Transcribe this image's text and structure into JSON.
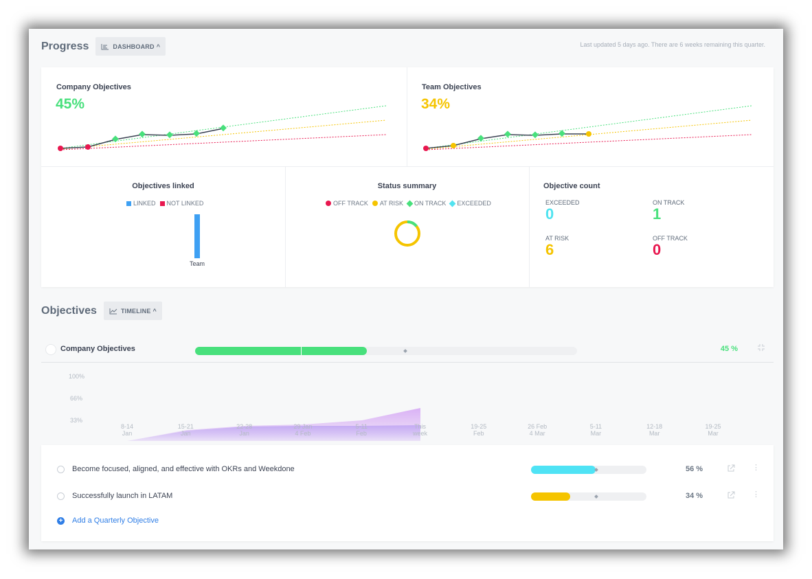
{
  "progress": {
    "title": "Progress",
    "view_button": "DASHBOARD",
    "updated_text": "Last updated 5 days ago. There are 6 weeks remaining this quarter."
  },
  "company_card": {
    "title": "Company Objectives",
    "percent": "45%",
    "percent_color": "#48e07c"
  },
  "team_card": {
    "title": "Team Objectives",
    "percent": "34%",
    "percent_color": "#f5c400"
  },
  "linked_card": {
    "title": "Objectives linked",
    "legend": [
      {
        "label": "LINKED",
        "color": "#3ea0f3"
      },
      {
        "label": "NOT LINKED",
        "color": "#e8174f"
      }
    ],
    "bar_label": "Team",
    "linked_fraction": 1.0
  },
  "status_card": {
    "title": "Status summary",
    "legend": [
      {
        "label": "OFF TRACK",
        "color": "#e8174f",
        "shape": "dot"
      },
      {
        "label": "AT RISK",
        "color": "#f5c400",
        "shape": "dot"
      },
      {
        "label": "ON TRACK",
        "color": "#48e07c",
        "shape": "diamond"
      },
      {
        "label": "EXCEEDED",
        "color": "#52e3f0",
        "shape": "diamond"
      }
    ],
    "donut": {
      "at_risk": 6,
      "on_track": 1,
      "off_track": 0,
      "exceeded": 0
    }
  },
  "count_card": {
    "title": "Objective count",
    "exceeded_label": "EXCEEDED",
    "exceeded_value": "0",
    "exceeded_color": "#4fe3f0",
    "on_track_label": "ON TRACK",
    "on_track_value": "1",
    "on_track_color": "#48e07c",
    "at_risk_label": "AT RISK",
    "at_risk_value": "6",
    "at_risk_color": "#f5c400",
    "off_track_label": "OFF TRACK",
    "off_track_value": "0",
    "off_track_color": "#e8174f"
  },
  "objectives": {
    "title": "Objectives",
    "view_button": "TIMELINE",
    "company": {
      "name": "Company Objectives",
      "percent": "45 %",
      "progress": 0.45,
      "expected": 0.55
    },
    "timeline": {
      "y_labels": [
        "100%",
        "66%",
        "33%"
      ],
      "x_labels": [
        {
          "l1": "8-14",
          "l2": "Jan"
        },
        {
          "l1": "15-21",
          "l2": "Jan"
        },
        {
          "l1": "22-28",
          "l2": "Jan"
        },
        {
          "l1": "29 Jan",
          "l2": "4 Feb"
        },
        {
          "l1": "5-11",
          "l2": "Feb"
        },
        {
          "l1": "This",
          "l2": "week"
        },
        {
          "l1": "19-25",
          "l2": "Feb"
        },
        {
          "l1": "26 Feb",
          "l2": "4 Mar"
        },
        {
          "l1": "5-11",
          "l2": "Mar"
        },
        {
          "l1": "12-18",
          "l2": "Mar"
        },
        {
          "l1": "19-25",
          "l2": "Mar"
        }
      ]
    },
    "items": [
      {
        "name": "Become focused, aligned, and effective with OKRs and Weekdone",
        "percent": "56 %",
        "progress": 0.56,
        "color": "#4fe3f5"
      },
      {
        "name": "Successfully launch in LATAM",
        "percent": "34 %",
        "progress": 0.34,
        "color": "#f5c400"
      }
    ],
    "add_label": "Add a Quarterly Objective"
  }
}
